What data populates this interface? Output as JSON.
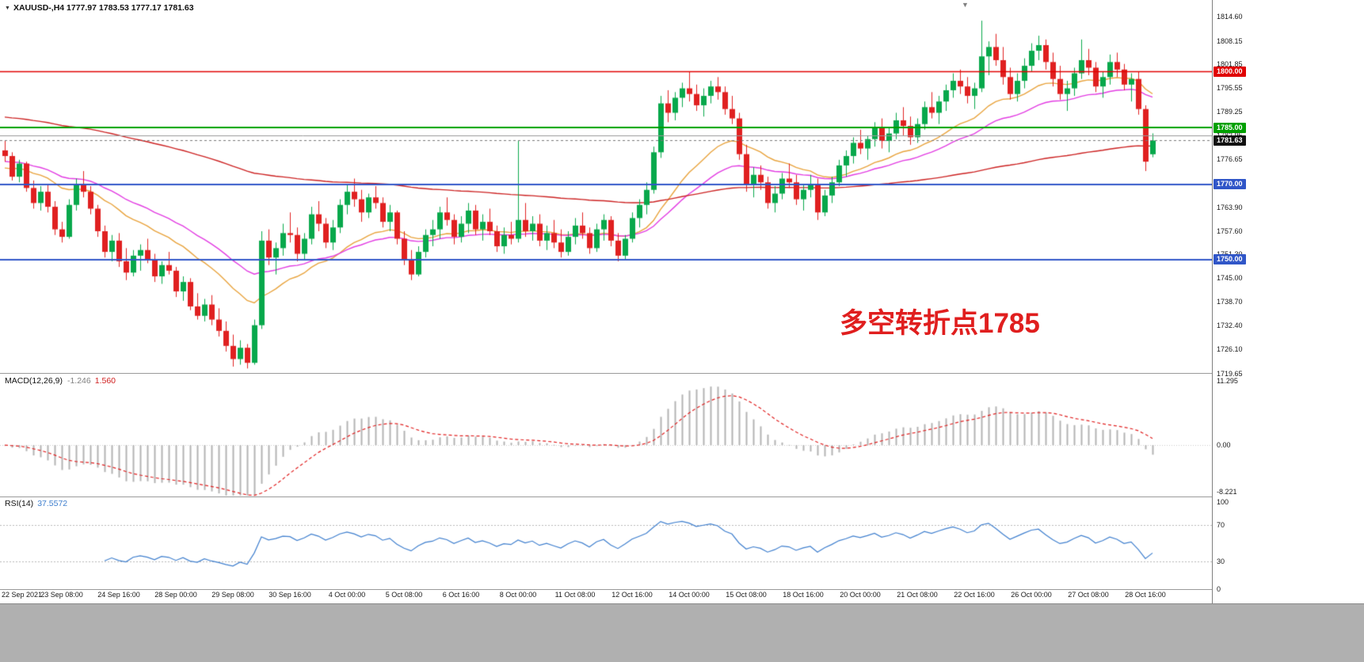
{
  "window": {
    "symbol_ohlc": "XAUUSD-,H4 1777.97 1783.53 1777.17 1781.63"
  },
  "annotation": {
    "text": "多空转折点1785",
    "color": "#e01e1e"
  },
  "chart_data": {
    "type": "candlestick",
    "symbol": "XAUUSD-",
    "timeframe": "H4",
    "current_ohlc": {
      "open": 1777.97,
      "high": 1783.53,
      "low": 1777.17,
      "close": 1781.63
    },
    "colors": {
      "up": "#08a84b",
      "down": "#e02020",
      "background": "#ffffff"
    },
    "price_axis": {
      "min": 1719.8,
      "max": 1819.0,
      "ticks": [
        "1814.60",
        "1808.15",
        "1801.85",
        "1795.55",
        "1789.25",
        "1782.95",
        "1776.65",
        "1770.35",
        "1763.90",
        "1757.60",
        "1751.30",
        "1745.00",
        "1738.70",
        "1732.40",
        "1726.10",
        "1719.65"
      ]
    },
    "hlines": [
      {
        "value": 1800.0,
        "label": "1800.00",
        "color": "#e00000",
        "width": 1.5
      },
      {
        "value": 1785.0,
        "label": "1785.00",
        "color": "#00a000",
        "width": 2
      },
      {
        "value": 1783.0,
        "label": null,
        "color": "#999999",
        "width": 1
      },
      {
        "value": 1770.0,
        "label": "1770.00",
        "color": "#3056c8",
        "width": 2
      },
      {
        "value": 1750.0,
        "label": "1750.00",
        "color": "#3056c8",
        "width": 2
      }
    ],
    "current_price": {
      "value": 1781.63,
      "label": "1781.63",
      "badge_bg": "#111111"
    },
    "moving_averages": [
      {
        "period": 20,
        "color": "#e8a33d",
        "seed": 1774
      },
      {
        "period": 34,
        "color": "#e23ce2",
        "seed": 1776
      },
      {
        "period": 150,
        "color": "#cc2222",
        "seed": 1788
      }
    ],
    "x_axis": {
      "labels": [
        {
          "i": 0,
          "t": "22 Sep 2021"
        },
        {
          "i": 8,
          "t": "23 Sep 08:00"
        },
        {
          "i": 16,
          "t": "24 Sep 16:00"
        },
        {
          "i": 24,
          "t": "28 Sep 00:00"
        },
        {
          "i": 32,
          "t": "29 Sep 08:00"
        },
        {
          "i": 40,
          "t": "30 Sep 16:00"
        },
        {
          "i": 48,
          "t": "4 Oct 00:00"
        },
        {
          "i": 56,
          "t": "5 Oct 08:00"
        },
        {
          "i": 64,
          "t": "6 Oct 16:00"
        },
        {
          "i": 72,
          "t": "8 Oct 00:00"
        },
        {
          "i": 80,
          "t": "11 Oct 08:00"
        },
        {
          "i": 88,
          "t": "12 Oct 16:00"
        },
        {
          "i": 96,
          "t": "14 Oct 00:00"
        },
        {
          "i": 104,
          "t": "15 Oct 08:00"
        },
        {
          "i": 112,
          "t": "18 Oct 16:00"
        },
        {
          "i": 120,
          "t": "20 Oct 00:00"
        },
        {
          "i": 128,
          "t": "21 Oct 08:00"
        },
        {
          "i": 136,
          "t": "22 Oct 16:00"
        },
        {
          "i": 144,
          "t": "26 Oct 00:00"
        },
        {
          "i": 152,
          "t": "27 Oct 08:00"
        },
        {
          "i": 160,
          "t": "28 Oct 16:00"
        }
      ]
    },
    "candles": [
      [
        1779.0,
        1781.5,
        1776.0,
        1777.5
      ],
      [
        1777.5,
        1778.5,
        1771.0,
        1772.0
      ],
      [
        1772.0,
        1776.5,
        1770.5,
        1775.5
      ],
      [
        1775.5,
        1776.0,
        1768.0,
        1769.0
      ],
      [
        1769.0,
        1771.0,
        1763.5,
        1765.0
      ],
      [
        1765.0,
        1769.5,
        1763.0,
        1768.0
      ],
      [
        1768.0,
        1770.0,
        1762.5,
        1764.0
      ],
      [
        1764.0,
        1765.5,
        1756.5,
        1758.0
      ],
      [
        1758.0,
        1760.0,
        1754.5,
        1756.0
      ],
      [
        1756.0,
        1766.0,
        1755.5,
        1764.5
      ],
      [
        1764.5,
        1771.5,
        1763.0,
        1770.0
      ],
      [
        1770.0,
        1773.5,
        1766.5,
        1768.0
      ],
      [
        1768.0,
        1769.5,
        1762.0,
        1763.5
      ],
      [
        1763.5,
        1764.5,
        1756.0,
        1757.5
      ],
      [
        1757.5,
        1759.0,
        1750.5,
        1752.0
      ],
      [
        1752.0,
        1756.5,
        1749.5,
        1755.0
      ],
      [
        1755.0,
        1757.0,
        1748.0,
        1749.5
      ],
      [
        1749.5,
        1753.0,
        1744.5,
        1746.5
      ],
      [
        1746.5,
        1752.5,
        1745.5,
        1751.0
      ],
      [
        1751.0,
        1754.0,
        1747.0,
        1752.5
      ],
      [
        1752.5,
        1755.5,
        1749.0,
        1750.0
      ],
      [
        1750.0,
        1751.5,
        1744.0,
        1745.5
      ],
      [
        1745.5,
        1749.5,
        1743.5,
        1748.5
      ],
      [
        1748.5,
        1752.0,
        1746.0,
        1747.0
      ],
      [
        1747.0,
        1748.0,
        1740.0,
        1741.5
      ],
      [
        1741.5,
        1745.5,
        1739.0,
        1744.0
      ],
      [
        1744.0,
        1745.0,
        1736.5,
        1737.5
      ],
      [
        1737.5,
        1741.0,
        1734.0,
        1735.0
      ],
      [
        1735.0,
        1739.5,
        1733.5,
        1738.0
      ],
      [
        1738.0,
        1740.5,
        1732.5,
        1734.0
      ],
      [
        1734.0,
        1737.0,
        1729.5,
        1731.0
      ],
      [
        1731.0,
        1733.5,
        1725.5,
        1727.0
      ],
      [
        1727.0,
        1730.0,
        1721.5,
        1723.5
      ],
      [
        1723.5,
        1728.5,
        1722.0,
        1726.5
      ],
      [
        1726.5,
        1727.5,
        1721.0,
        1722.5
      ],
      [
        1722.5,
        1734.0,
        1722.0,
        1732.5
      ],
      [
        1732.5,
        1757.5,
        1731.5,
        1755.0
      ],
      [
        1755.0,
        1758.0,
        1748.5,
        1750.5
      ],
      [
        1750.5,
        1754.5,
        1746.0,
        1753.0
      ],
      [
        1753.0,
        1759.5,
        1751.0,
        1757.0
      ],
      [
        1757.0,
        1762.5,
        1754.5,
        1756.5
      ],
      [
        1756.5,
        1758.5,
        1749.5,
        1751.5
      ],
      [
        1751.5,
        1757.0,
        1750.0,
        1755.5
      ],
      [
        1755.5,
        1764.0,
        1754.0,
        1762.0
      ],
      [
        1762.0,
        1765.5,
        1757.5,
        1759.5
      ],
      [
        1759.5,
        1761.0,
        1753.0,
        1754.5
      ],
      [
        1754.5,
        1760.5,
        1752.5,
        1758.5
      ],
      [
        1758.5,
        1766.0,
        1757.0,
        1764.5
      ],
      [
        1764.5,
        1770.0,
        1762.0,
        1768.0
      ],
      [
        1768.0,
        1771.5,
        1764.0,
        1766.0
      ],
      [
        1766.0,
        1768.5,
        1760.0,
        1762.5
      ],
      [
        1762.5,
        1767.5,
        1761.0,
        1766.5
      ],
      [
        1766.5,
        1769.5,
        1763.5,
        1765.0
      ],
      [
        1765.0,
        1766.5,
        1758.5,
        1760.0
      ],
      [
        1760.0,
        1764.5,
        1757.5,
        1762.5
      ],
      [
        1762.5,
        1763.0,
        1754.0,
        1755.5
      ],
      [
        1755.5,
        1757.5,
        1748.5,
        1750.0
      ],
      [
        1750.0,
        1752.5,
        1744.5,
        1746.0
      ],
      [
        1746.0,
        1753.5,
        1745.5,
        1752.0
      ],
      [
        1752.0,
        1758.0,
        1750.5,
        1756.5
      ],
      [
        1756.5,
        1760.5,
        1753.5,
        1758.0
      ],
      [
        1758.0,
        1764.0,
        1755.5,
        1762.5
      ],
      [
        1762.5,
        1766.5,
        1759.0,
        1760.5
      ],
      [
        1760.5,
        1762.0,
        1754.0,
        1756.0
      ],
      [
        1756.0,
        1761.5,
        1754.5,
        1759.5
      ],
      [
        1759.5,
        1765.0,
        1757.0,
        1763.0
      ],
      [
        1763.0,
        1764.5,
        1756.5,
        1758.0
      ],
      [
        1758.0,
        1762.0,
        1755.0,
        1760.0
      ],
      [
        1760.0,
        1763.5,
        1756.5,
        1757.5
      ],
      [
        1757.5,
        1759.0,
        1752.0,
        1753.5
      ],
      [
        1753.5,
        1758.5,
        1751.5,
        1756.5
      ],
      [
        1756.5,
        1760.0,
        1754.0,
        1755.5
      ],
      [
        1755.5,
        1781.5,
        1754.5,
        1760.5
      ],
      [
        1760.5,
        1765.0,
        1756.0,
        1757.5
      ],
      [
        1757.5,
        1761.5,
        1755.0,
        1759.5
      ],
      [
        1759.5,
        1762.0,
        1753.5,
        1755.0
      ],
      [
        1755.0,
        1759.0,
        1752.5,
        1757.0
      ],
      [
        1757.0,
        1760.5,
        1753.0,
        1754.5
      ],
      [
        1754.5,
        1758.0,
        1750.5,
        1752.0
      ],
      [
        1752.0,
        1757.5,
        1751.0,
        1756.0
      ],
      [
        1756.0,
        1761.0,
        1754.0,
        1759.0
      ],
      [
        1759.0,
        1762.5,
        1755.5,
        1757.0
      ],
      [
        1757.0,
        1758.5,
        1751.5,
        1753.0
      ],
      [
        1753.0,
        1759.5,
        1752.0,
        1758.0
      ],
      [
        1758.0,
        1762.0,
        1755.0,
        1760.5
      ],
      [
        1760.5,
        1761.5,
        1753.5,
        1755.0
      ],
      [
        1755.0,
        1757.0,
        1749.5,
        1751.0
      ],
      [
        1751.0,
        1756.5,
        1750.0,
        1755.5
      ],
      [
        1755.5,
        1762.5,
        1754.5,
        1761.0
      ],
      [
        1761.0,
        1766.0,
        1758.5,
        1764.5
      ],
      [
        1764.5,
        1770.5,
        1762.0,
        1768.5
      ],
      [
        1768.5,
        1780.0,
        1767.5,
        1778.5
      ],
      [
        1778.5,
        1793.5,
        1777.0,
        1791.5
      ],
      [
        1791.5,
        1795.0,
        1786.5,
        1789.0
      ],
      [
        1789.0,
        1794.5,
        1787.0,
        1793.0
      ],
      [
        1793.0,
        1797.0,
        1790.5,
        1795.5
      ],
      [
        1795.5,
        1800.0,
        1792.0,
        1794.0
      ],
      [
        1794.0,
        1796.5,
        1789.5,
        1791.0
      ],
      [
        1791.0,
        1795.5,
        1788.0,
        1793.5
      ],
      [
        1793.5,
        1797.5,
        1791.5,
        1796.0
      ],
      [
        1796.0,
        1798.5,
        1792.5,
        1794.5
      ],
      [
        1794.5,
        1796.0,
        1788.5,
        1790.0
      ],
      [
        1790.0,
        1793.5,
        1786.0,
        1787.5
      ],
      [
        1787.5,
        1789.0,
        1776.5,
        1778.0
      ],
      [
        1778.0,
        1780.5,
        1768.0,
        1770.0
      ],
      [
        1770.0,
        1774.5,
        1766.5,
        1772.5
      ],
      [
        1772.5,
        1775.0,
        1768.5,
        1770.5
      ],
      [
        1770.5,
        1772.0,
        1763.5,
        1765.0
      ],
      [
        1765.0,
        1769.5,
        1762.5,
        1767.5
      ],
      [
        1767.5,
        1773.0,
        1766.0,
        1771.5
      ],
      [
        1771.5,
        1775.5,
        1769.0,
        1770.5
      ],
      [
        1770.5,
        1772.5,
        1764.5,
        1766.0
      ],
      [
        1766.0,
        1770.0,
        1763.0,
        1768.5
      ],
      [
        1768.5,
        1772.5,
        1766.5,
        1770.0
      ],
      [
        1770.0,
        1771.5,
        1760.5,
        1762.5
      ],
      [
        1762.5,
        1768.5,
        1761.5,
        1767.0
      ],
      [
        1767.0,
        1772.0,
        1765.0,
        1770.5
      ],
      [
        1770.5,
        1776.5,
        1769.5,
        1775.0
      ],
      [
        1775.0,
        1779.0,
        1772.0,
        1777.5
      ],
      [
        1777.5,
        1782.5,
        1775.5,
        1781.0
      ],
      [
        1781.0,
        1784.5,
        1778.0,
        1779.5
      ],
      [
        1779.5,
        1783.0,
        1776.5,
        1782.0
      ],
      [
        1782.0,
        1786.5,
        1780.0,
        1785.0
      ],
      [
        1785.0,
        1787.5,
        1779.5,
        1781.5
      ],
      [
        1781.5,
        1785.0,
        1778.5,
        1783.5
      ],
      [
        1783.5,
        1789.0,
        1782.0,
        1787.0
      ],
      [
        1787.0,
        1790.5,
        1783.0,
        1785.5
      ],
      [
        1785.5,
        1788.0,
        1780.5,
        1782.5
      ],
      [
        1782.5,
        1787.5,
        1781.0,
        1786.0
      ],
      [
        1786.0,
        1792.0,
        1784.5,
        1790.5
      ],
      [
        1790.5,
        1794.5,
        1787.5,
        1789.0
      ],
      [
        1789.0,
        1793.5,
        1786.0,
        1792.0
      ],
      [
        1792.0,
        1796.5,
        1789.5,
        1795.0
      ],
      [
        1795.0,
        1799.5,
        1793.0,
        1797.5
      ],
      [
        1797.5,
        1800.5,
        1794.0,
        1796.0
      ],
      [
        1796.0,
        1798.5,
        1791.5,
        1793.5
      ],
      [
        1793.5,
        1797.0,
        1790.0,
        1795.5
      ],
      [
        1795.5,
        1813.5,
        1794.5,
        1804.0
      ],
      [
        1804.0,
        1808.0,
        1799.0,
        1806.5
      ],
      [
        1806.5,
        1810.0,
        1801.5,
        1803.0
      ],
      [
        1803.0,
        1806.5,
        1796.5,
        1798.5
      ],
      [
        1798.5,
        1801.0,
        1792.5,
        1794.0
      ],
      [
        1794.0,
        1799.5,
        1792.0,
        1797.5
      ],
      [
        1797.5,
        1803.5,
        1795.5,
        1801.5
      ],
      [
        1801.5,
        1807.5,
        1800.0,
        1805.5
      ],
      [
        1805.5,
        1809.5,
        1803.0,
        1807.0
      ],
      [
        1807.0,
        1808.5,
        1800.5,
        1802.5
      ],
      [
        1802.5,
        1805.0,
        1796.0,
        1798.0
      ],
      [
        1798.0,
        1801.5,
        1792.5,
        1794.0
      ],
      [
        1794.0,
        1797.5,
        1789.5,
        1795.5
      ],
      [
        1795.5,
        1801.0,
        1793.5,
        1799.5
      ],
      [
        1799.5,
        1808.5,
        1798.0,
        1803.0
      ],
      [
        1803.0,
        1806.0,
        1799.0,
        1801.0
      ],
      [
        1801.0,
        1802.5,
        1794.5,
        1796.0
      ],
      [
        1796.0,
        1800.0,
        1793.0,
        1798.5
      ],
      [
        1798.5,
        1804.5,
        1796.5,
        1802.5
      ],
      [
        1802.5,
        1805.0,
        1798.5,
        1800.5
      ],
      [
        1800.5,
        1802.0,
        1795.0,
        1796.5
      ],
      [
        1796.5,
        1799.5,
        1792.0,
        1798.0
      ],
      [
        1798.0,
        1800.0,
        1788.5,
        1790.0
      ],
      [
        1790.0,
        1791.0,
        1773.5,
        1776.0
      ],
      [
        1777.97,
        1783.53,
        1777.17,
        1781.63
      ]
    ],
    "indicators": {
      "macd": {
        "title": "MACD(12,26,9)",
        "value_main": "-1.246",
        "value_signal": "1.560",
        "fast": 12,
        "slow": 26,
        "signal": 9,
        "axis_labels": [
          {
            "v": 11.295,
            "t": "11.295"
          },
          {
            "v": 0,
            "t": "0.00"
          },
          {
            "v": -8.221,
            "t": "-8.221"
          }
        ],
        "scale": {
          "min": -9.0,
          "max": 12.5
        },
        "hist_color": "#b4b4b4",
        "signal_color": "#e02020"
      },
      "rsi": {
        "title": "RSI(14)",
        "value": "37.5572",
        "period": 14,
        "color": "#3f7fce",
        "axis_labels": [
          {
            "v": 100,
            "t": "100"
          },
          {
            "v": 70,
            "t": "70"
          },
          {
            "v": 30,
            "t": "30"
          },
          {
            "v": 0,
            "t": "0"
          }
        ],
        "levels": [
          70,
          30
        ],
        "scale": {
          "min": 0,
          "max": 100
        }
      }
    }
  }
}
